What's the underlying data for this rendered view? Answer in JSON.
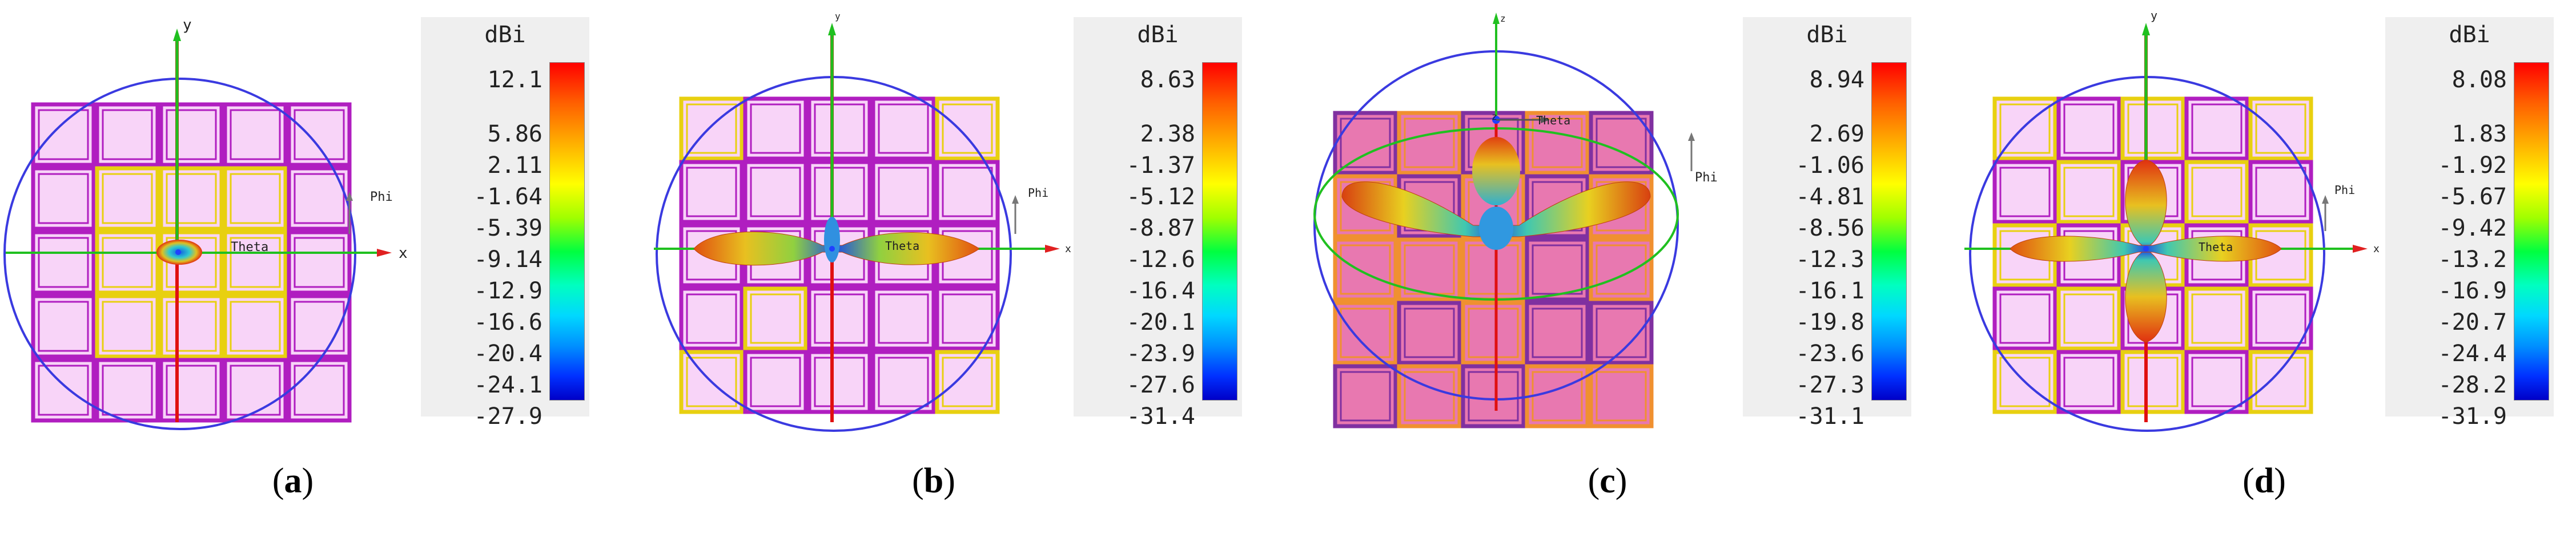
{
  "panels": [
    {
      "id": "a",
      "caption_open": "(",
      "caption_letter": "a",
      "caption_close": ")",
      "axis_x": "x",
      "axis_y": "y",
      "label_phi": "Phi",
      "label_theta": "Theta",
      "scale_unit": "dBi",
      "scale_ticks": [
        "12.1",
        "5.86",
        "2.11",
        "-1.64",
        "-5.39",
        "-9.14",
        "-12.9",
        "-16.6",
        "-20.4",
        "-24.1",
        "-27.9"
      ]
    },
    {
      "id": "b",
      "caption_open": "(",
      "caption_letter": "b",
      "caption_close": ")",
      "axis_x": "x",
      "axis_y": "y",
      "label_phi": "Phi",
      "label_theta": "Theta",
      "scale_unit": "dBi",
      "scale_ticks": [
        "8.63",
        "2.38",
        "-1.37",
        "-5.12",
        "-8.87",
        "-12.6",
        "-16.4",
        "-20.1",
        "-23.9",
        "-27.6",
        "-31.4"
      ]
    },
    {
      "id": "c",
      "caption_open": "(",
      "caption_letter": "c",
      "caption_close": ")",
      "axis_x": "z",
      "axis_y": "z",
      "label_phi": "Phi",
      "label_theta": "Theta",
      "scale_unit": "dBi",
      "scale_ticks": [
        "8.94",
        "2.69",
        "-1.06",
        "-4.81",
        "-8.56",
        "-12.3",
        "-16.1",
        "-19.8",
        "-23.6",
        "-27.3",
        "-31.1"
      ]
    },
    {
      "id": "d",
      "caption_open": "(",
      "caption_letter": "d",
      "caption_close": ")",
      "axis_x": "x",
      "axis_y": "y",
      "label_phi": "Phi",
      "label_theta": "Theta",
      "scale_unit": "dBi",
      "scale_ticks": [
        "8.08",
        "1.83",
        "-1.92",
        "-5.67",
        "-9.42",
        "-13.2",
        "-16.9",
        "-20.7",
        "-24.4",
        "-28.2",
        "-31.9"
      ]
    }
  ],
  "colors": {
    "purple_frame": "#b01ec0",
    "yellow_frame": "#e8d010",
    "cell_fill": "#f8d4f8",
    "circle": "#3a3ae0",
    "x_axis": "#e02020",
    "y_axis": "#20c020",
    "red_axis": "#e01010",
    "pink_cell_c": "#e878b0",
    "orange_frame_c": "#f09030"
  }
}
